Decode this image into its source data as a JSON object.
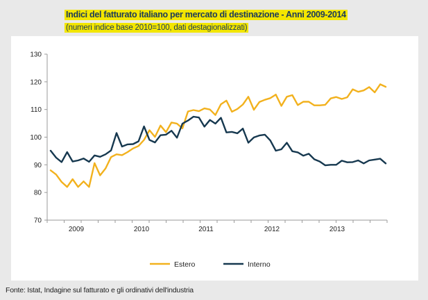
{
  "chart_data": {
    "type": "line",
    "title": "Indici del fatturato italiano per mercato di destinazione - Anni 2009-2014",
    "subtitle": "(numeri indice base 2010=100, dati destagionalizzati)",
    "ylim": [
      70,
      130
    ],
    "yticks": [
      70,
      80,
      90,
      100,
      110,
      120,
      130
    ],
    "xtick_labels": [
      "2009",
      "2010",
      "2011",
      "2012",
      "2013"
    ],
    "grid": false,
    "legend_position": "bottom",
    "series": [
      {
        "name": "Estero",
        "color": "#f2b11d",
        "values": [
          88.0,
          86.5,
          83.8,
          82.0,
          84.8,
          82.0,
          84.0,
          82.0,
          90.6,
          86.2,
          88.7,
          92.8,
          93.8,
          93.5,
          94.6,
          95.9,
          96.8,
          99.0,
          102.5,
          100.1,
          104.2,
          101.8,
          105.3,
          104.9,
          103.2,
          109.3,
          109.8,
          109.4,
          110.4,
          110.0,
          108.0,
          111.9,
          113.2,
          109.2,
          110.2,
          111.8,
          114.6,
          109.9,
          112.7,
          113.5,
          114.1,
          115.4,
          111.3,
          114.6,
          115.2,
          111.6,
          112.8,
          112.8,
          111.5,
          111.5,
          111.7,
          114.0,
          114.5,
          113.8,
          114.4,
          117.3,
          116.4,
          116.9,
          118.1,
          116.2,
          119.1,
          118.2
        ]
      },
      {
        "name": "Interno",
        "color": "#16384f",
        "values": [
          95.1,
          92.6,
          91.0,
          94.6,
          91.2,
          91.6,
          92.3,
          91.1,
          93.4,
          92.9,
          93.8,
          95.2,
          101.5,
          96.6,
          97.4,
          97.5,
          98.5,
          103.9,
          99.0,
          98.1,
          100.7,
          100.9,
          102.3,
          99.8,
          104.9,
          106.0,
          107.4,
          107.1,
          103.8,
          106.2,
          104.9,
          107.0,
          101.7,
          101.9,
          101.4,
          103.1,
          98.0,
          99.9,
          100.6,
          100.9,
          98.8,
          95.1,
          95.6,
          98.0,
          94.9,
          94.5,
          93.3,
          94.0,
          92.0,
          91.2,
          89.8,
          90.0,
          90.0,
          91.5,
          90.9,
          91.0,
          91.6,
          90.5,
          91.6,
          91.9,
          92.2,
          90.5
        ]
      }
    ]
  },
  "footer": {
    "source": "Fonte: Istat, Indagine sul fatturato e gli ordinativi dell'industria"
  }
}
